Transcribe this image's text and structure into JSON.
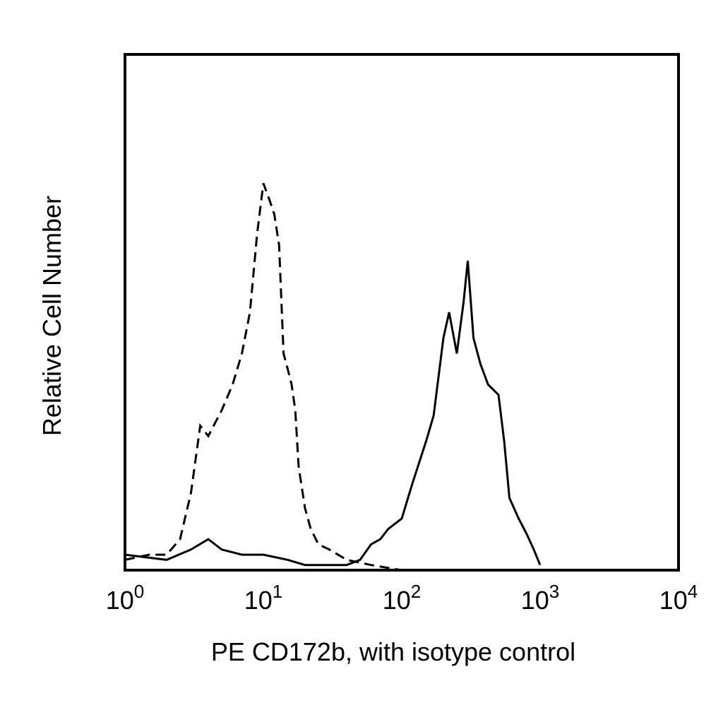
{
  "chart_data": {
    "type": "line",
    "xlabel": "PE CD172b, with isotype control",
    "ylabel": "Relative Cell Number",
    "xscale": "log",
    "xlim": [
      1,
      10000
    ],
    "ylim": [
      0,
      100
    ],
    "xticks": [
      {
        "value": 1,
        "label": "10",
        "exponent": "0"
      },
      {
        "value": 10,
        "label": "10",
        "exponent": "1"
      },
      {
        "value": 100,
        "label": "10",
        "exponent": "2"
      },
      {
        "value": 1000,
        "label": "10",
        "exponent": "3"
      },
      {
        "value": 10000,
        "label": "10",
        "exponent": "4"
      }
    ],
    "series": [
      {
        "color": "#000000",
        "line_style": "dashed",
        "x": [
          1,
          1.5,
          2,
          2.5,
          3,
          3.5,
          4,
          5,
          6,
          7,
          8,
          9,
          10,
          11,
          12,
          13,
          14,
          15,
          16,
          17,
          18,
          20,
          22,
          25,
          30,
          40,
          60,
          100
        ],
        "values": [
          2,
          3,
          3,
          6,
          15,
          28,
          26,
          31,
          36,
          42,
          50,
          65,
          75,
          72,
          69,
          63,
          42,
          39,
          36,
          31,
          20,
          12,
          8,
          5,
          4,
          2,
          1,
          0
        ]
      },
      {
        "color": "#000000",
        "line_style": "solid",
        "x": [
          1,
          2,
          3,
          4,
          5,
          7,
          10,
          15,
          20,
          30,
          40,
          50,
          60,
          70,
          80,
          100,
          120,
          150,
          170,
          200,
          220,
          250,
          280,
          300,
          330,
          370,
          420,
          500,
          550,
          600,
          700,
          800,
          900,
          1000
        ],
        "values": [
          3,
          2,
          4,
          6,
          4,
          3,
          3,
          2,
          1,
          1,
          1,
          2,
          5,
          6,
          8,
          10,
          17,
          25,
          30,
          45,
          50,
          42,
          52,
          60,
          45,
          40,
          36,
          34,
          25,
          14,
          10,
          7,
          4,
          1
        ]
      }
    ]
  }
}
